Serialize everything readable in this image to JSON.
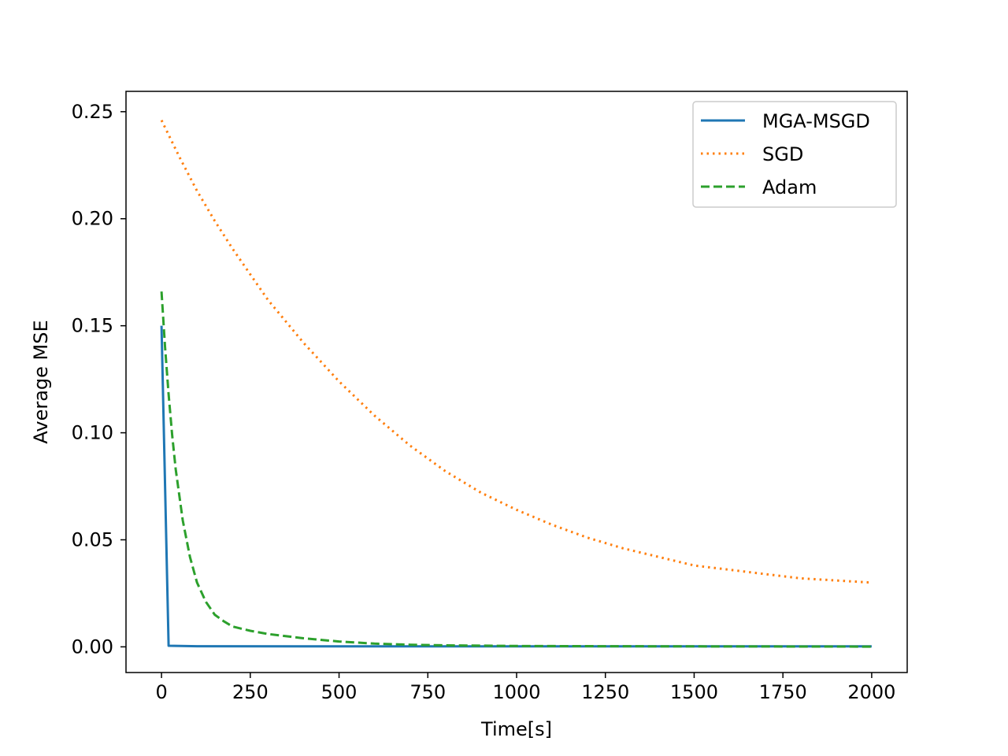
{
  "chart_data": {
    "type": "line",
    "xlabel": "Time[s]",
    "ylabel": "Average MSE",
    "xlim": [
      -100,
      2100
    ],
    "ylim": [
      -0.012,
      0.2595
    ],
    "x_ticks": [
      0,
      250,
      500,
      750,
      1000,
      1250,
      1500,
      1750,
      2000
    ],
    "x_tick_labels": [
      "0",
      "250",
      "500",
      "750",
      "1000",
      "1250",
      "1500",
      "1750",
      "2000"
    ],
    "y_ticks": [
      0.0,
      0.05,
      0.1,
      0.15,
      0.2,
      0.25
    ],
    "y_tick_labels": [
      "0.00",
      "0.05",
      "0.10",
      "0.15",
      "0.20",
      "0.25"
    ],
    "grid": false,
    "legend_position": "top-right",
    "series": [
      {
        "name": "MGA-MSGD",
        "color": "#1f77b4",
        "style": "solid",
        "x": [
          0,
          20,
          100,
          500,
          1000,
          1500,
          2000
        ],
        "y": [
          0.15,
          0.0005,
          0.0003,
          0.0002,
          0.0002,
          0.0002,
          0.0002
        ]
      },
      {
        "name": "SGD",
        "color": "#ff7f0e",
        "style": "dotted",
        "x": [
          0,
          50,
          100,
          150,
          200,
          250,
          300,
          400,
          500,
          600,
          700,
          800,
          900,
          1000,
          1100,
          1200,
          1300,
          1400,
          1500,
          1600,
          1700,
          1800,
          1900,
          2000
        ],
        "y": [
          0.246,
          0.229,
          0.213,
          0.199,
          0.186,
          0.174,
          0.162,
          0.142,
          0.124,
          0.108,
          0.094,
          0.082,
          0.072,
          0.064,
          0.057,
          0.051,
          0.046,
          0.042,
          0.038,
          0.036,
          0.034,
          0.032,
          0.031,
          0.03
        ]
      },
      {
        "name": "Adam",
        "color": "#2ca02c",
        "style": "dashed",
        "x": [
          0,
          10,
          20,
          30,
          40,
          60,
          80,
          100,
          125,
          150,
          175,
          200,
          250,
          300,
          400,
          500,
          600,
          700,
          800,
          1000,
          1250,
          1500,
          2000
        ],
        "y": [
          0.166,
          0.14,
          0.118,
          0.099,
          0.083,
          0.059,
          0.042,
          0.03,
          0.021,
          0.015,
          0.012,
          0.0095,
          0.0075,
          0.006,
          0.004,
          0.0025,
          0.0015,
          0.001,
          0.0007,
          0.0004,
          0.0003,
          0.0002,
          0.0001
        ]
      }
    ]
  }
}
